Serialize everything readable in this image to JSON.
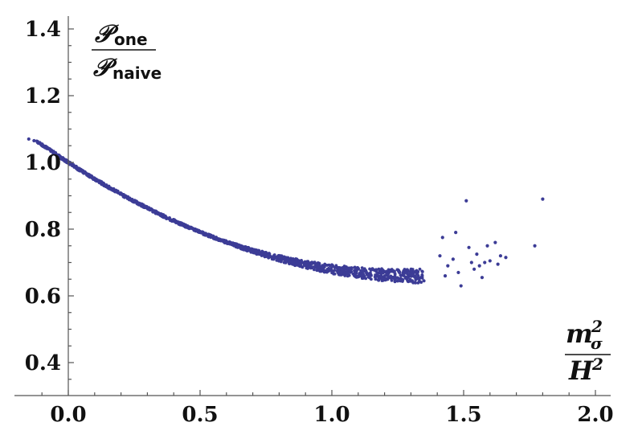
{
  "chart_data": {
    "type": "scatter",
    "title": "",
    "xlabel": {
      "numerator": {
        "base": "m",
        "sup": "2",
        "sub": "σ"
      },
      "denominator": {
        "base": "H",
        "sup": "2"
      }
    },
    "ylabel": {
      "numerator": {
        "base": "𝒫",
        "sub": "one"
      },
      "denominator": {
        "base": "𝒫",
        "sub": "naive"
      }
    },
    "xlim": [
      -0.2,
      2.1
    ],
    "ylim": [
      0.3,
      1.42
    ],
    "xticks": [
      "0.0",
      "0.5",
      "1.0",
      "1.5",
      "2.0"
    ],
    "yticks": [
      "0.4",
      "0.6",
      "0.8",
      "1.0",
      "1.2",
      "1.4"
    ],
    "marker_color": "#3c3c96",
    "curve": {
      "model": "quadratic",
      "x_range": [
        -0.12,
        1.35
      ],
      "vertex_x": 1.32,
      "vertex_y": 0.66,
      "y_at_0": 1.0
    },
    "outliers": [
      {
        "x": -0.15,
        "y": 1.07
      },
      {
        "x": -0.13,
        "y": 1.065
      },
      {
        "x": 1.42,
        "y": 0.775
      },
      {
        "x": 1.47,
        "y": 0.79
      },
      {
        "x": 1.51,
        "y": 0.885
      },
      {
        "x": 1.52,
        "y": 0.745
      },
      {
        "x": 1.49,
        "y": 0.63
      },
      {
        "x": 1.55,
        "y": 0.725
      },
      {
        "x": 1.57,
        "y": 0.655
      },
      {
        "x": 1.59,
        "y": 0.75
      },
      {
        "x": 1.62,
        "y": 0.76
      },
      {
        "x": 1.64,
        "y": 0.72
      },
      {
        "x": 1.66,
        "y": 0.715
      },
      {
        "x": 1.77,
        "y": 0.75
      },
      {
        "x": 1.8,
        "y": 0.89
      },
      {
        "x": 1.44,
        "y": 0.69
      },
      {
        "x": 1.46,
        "y": 0.71
      },
      {
        "x": 1.53,
        "y": 0.7
      },
      {
        "x": 1.56,
        "y": 0.69
      },
      {
        "x": 1.6,
        "y": 0.705
      },
      {
        "x": 1.48,
        "y": 0.67
      },
      {
        "x": 1.54,
        "y": 0.68
      },
      {
        "x": 1.41,
        "y": 0.72
      },
      {
        "x": 1.43,
        "y": 0.66
      },
      {
        "x": 1.58,
        "y": 0.7
      },
      {
        "x": 1.63,
        "y": 0.695
      }
    ]
  }
}
